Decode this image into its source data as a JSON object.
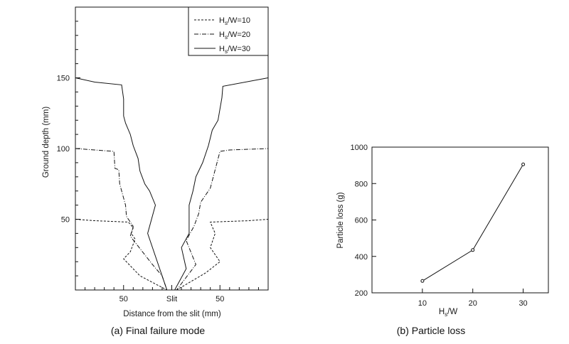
{
  "chart_data": [
    {
      "id": "a",
      "type": "line",
      "caption": "(a) Final failure mode",
      "xlabel": "Distance from the slit (mm)",
      "ylabel": "Ground depth (mm)",
      "ylim": [
        0,
        200
      ],
      "x_range": [
        -100,
        100
      ],
      "x_tick_labels": [
        {
          "x": -50,
          "label": "50"
        },
        {
          "x": 0,
          "label": "Slit"
        },
        {
          "x": 50,
          "label": "50"
        }
      ],
      "y_ticks": [
        50,
        100,
        150
      ],
      "grid": false,
      "legend_position": "top-right",
      "series": [
        {
          "name": "Hs/W=10",
          "name_main": "H",
          "name_sub": "s",
          "name_rest": "/W=10",
          "dash": "dashed",
          "color": "#111111",
          "x": [
            -100,
            -80,
            -45,
            -40,
            -42,
            -38,
            -43,
            -50,
            -33,
            -5,
            5,
            35,
            50,
            46,
            40,
            45,
            40,
            80,
            100
          ],
          "y": [
            50,
            49,
            48,
            44,
            40,
            36,
            27,
            22,
            10,
            0,
            0,
            12,
            20,
            24,
            30,
            40,
            48,
            49,
            50
          ]
        },
        {
          "name": "Hs/W=20",
          "name_main": "H",
          "name_sub": "s",
          "name_rest": "/W=20",
          "dash": "dashdot",
          "color": "#111111",
          "x": [
            -100,
            -80,
            -60,
            -59,
            -55,
            -54,
            -48,
            -47,
            -40,
            -43,
            -20,
            -10,
            -5,
            5,
            25,
            15,
            23,
            28,
            30,
            40,
            45,
            50,
            60,
            100
          ],
          "y": [
            100,
            99,
            98,
            86,
            85,
            75,
            60,
            52,
            45,
            38,
            18,
            10,
            0,
            0,
            18,
            35,
            45,
            54,
            62,
            72,
            85,
            98,
            99,
            100
          ]
        },
        {
          "name": "Hs/W=30",
          "name_main": "H",
          "name_sub": "s",
          "name_rest": "/W=30",
          "dash": "solid",
          "color": "#111111",
          "x": [
            -100,
            -80,
            -52,
            -50,
            -50,
            -48,
            -43,
            -40,
            -35,
            -33,
            -28,
            -23,
            -17,
            -25,
            -5,
            -3,
            3,
            15,
            10,
            18,
            18,
            22,
            25,
            32,
            38,
            42,
            48,
            52,
            53,
            100
          ],
          "y": [
            150,
            147,
            145,
            135,
            123,
            118,
            110,
            102,
            93,
            84,
            75,
            70,
            60,
            40,
            0,
            0,
            0,
            15,
            30,
            40,
            60,
            70,
            80,
            90,
            102,
            113,
            120,
            136,
            144,
            150
          ]
        }
      ]
    },
    {
      "id": "b",
      "type": "line",
      "caption": "(b) Particle loss",
      "xlabel_main": "H",
      "xlabel_sub": "s",
      "xlabel_rest": "/W",
      "ylabel": "Particle loss (g)",
      "ylim": [
        200,
        1000
      ],
      "xlim": [
        0,
        35
      ],
      "x_ticks": [
        10,
        20,
        30
      ],
      "y_ticks": [
        200,
        400,
        600,
        800,
        1000
      ],
      "grid": false,
      "series": [
        {
          "x": [
            10,
            20,
            30
          ],
          "y": [
            265,
            435,
            905
          ],
          "marker": "circle-open",
          "color": "#111111"
        }
      ]
    }
  ]
}
